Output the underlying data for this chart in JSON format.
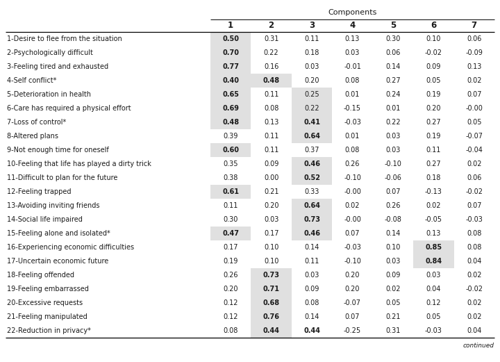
{
  "title": "Components",
  "col_headers": [
    "1",
    "2",
    "3",
    "4",
    "5",
    "6",
    "7"
  ],
  "rows": [
    {
      "label": "1-Desire to flee from the situation",
      "values": [
        "0.50",
        "0.31",
        "0.11",
        "0.13",
        "0.30",
        "0.10",
        "0.06"
      ],
      "bold": [
        true,
        false,
        false,
        false,
        false,
        false,
        false
      ]
    },
    {
      "label": "2-Psychologically difficult",
      "values": [
        "0.70",
        "0.22",
        "0.18",
        "0.03",
        "0.06",
        "-0.02",
        "-0.09"
      ],
      "bold": [
        true,
        false,
        false,
        false,
        false,
        false,
        false
      ]
    },
    {
      "label": "3-Feeling tired and exhausted",
      "values": [
        "0.77",
        "0.16",
        "0.03",
        "-0.01",
        "0.14",
        "0.09",
        "0.13"
      ],
      "bold": [
        true,
        false,
        false,
        false,
        false,
        false,
        false
      ]
    },
    {
      "label": "4-Self conflict*",
      "values": [
        "0.40",
        "0.48",
        "0.20",
        "0.08",
        "0.27",
        "0.05",
        "0.02"
      ],
      "bold": [
        true,
        true,
        false,
        false,
        false,
        false,
        false
      ]
    },
    {
      "label": "5-Deterioration in health",
      "values": [
        "0.65",
        "0.11",
        "0.25",
        "0.01",
        "0.24",
        "0.19",
        "0.07"
      ],
      "bold": [
        true,
        false,
        false,
        false,
        false,
        false,
        false
      ]
    },
    {
      "label": "6-Care has required a physical effort",
      "values": [
        "0.69",
        "0.08",
        "0.22",
        "-0.15",
        "0.01",
        "0.20",
        "-0.00"
      ],
      "bold": [
        true,
        false,
        false,
        false,
        false,
        false,
        false
      ]
    },
    {
      "label": "7-Loss of control*",
      "values": [
        "0.48",
        "0.13",
        "0.41",
        "-0.03",
        "0.22",
        "0.27",
        "0.05"
      ],
      "bold": [
        true,
        false,
        true,
        false,
        false,
        false,
        false
      ]
    },
    {
      "label": "8-Altered plans",
      "values": [
        "0.39",
        "0.11",
        "0.64",
        "0.01",
        "0.03",
        "0.19",
        "-0.07"
      ],
      "bold": [
        false,
        false,
        true,
        false,
        false,
        false,
        false
      ]
    },
    {
      "label": "9-Not enough time for oneself",
      "values": [
        "0.60",
        "0.11",
        "0.37",
        "0.08",
        "0.03",
        "0.11",
        "-0.04"
      ],
      "bold": [
        true,
        false,
        false,
        false,
        false,
        false,
        false
      ]
    },
    {
      "label": "10-Feeling that life has played a dirty trick",
      "values": [
        "0.35",
        "0.09",
        "0.46",
        "0.26",
        "-0.10",
        "0.27",
        "0.02"
      ],
      "bold": [
        false,
        false,
        true,
        false,
        false,
        false,
        false
      ]
    },
    {
      "label": "11-Difficult to plan for the future",
      "values": [
        "0.38",
        "0.00",
        "0.52",
        "-0.10",
        "-0.06",
        "0.18",
        "0.06"
      ],
      "bold": [
        false,
        false,
        true,
        false,
        false,
        false,
        false
      ]
    },
    {
      "label": "12-Feeling trapped",
      "values": [
        "0.61",
        "0.21",
        "0.33",
        "-0.00",
        "0.07",
        "-0.13",
        "-0.02"
      ],
      "bold": [
        true,
        false,
        false,
        false,
        false,
        false,
        false
      ]
    },
    {
      "label": "13-Avoiding inviting friends",
      "values": [
        "0.11",
        "0.20",
        "0.64",
        "0.02",
        "0.26",
        "0.02",
        "0.07"
      ],
      "bold": [
        false,
        false,
        true,
        false,
        false,
        false,
        false
      ]
    },
    {
      "label": "14-Social life impaired",
      "values": [
        "0.30",
        "0.03",
        "0.73",
        "-0.00",
        "-0.08",
        "-0.05",
        "-0.03"
      ],
      "bold": [
        false,
        false,
        true,
        false,
        false,
        false,
        false
      ]
    },
    {
      "label": "15-Feeling alone and isolated*",
      "values": [
        "0.47",
        "0.17",
        "0.46",
        "0.07",
        "0.14",
        "0.13",
        "0.08"
      ],
      "bold": [
        true,
        false,
        true,
        false,
        false,
        false,
        false
      ]
    },
    {
      "label": "16-Experiencing economic difficulties",
      "values": [
        "0.17",
        "0.10",
        "0.14",
        "-0.03",
        "0.10",
        "0.85",
        "0.08"
      ],
      "bold": [
        false,
        false,
        false,
        false,
        false,
        true,
        false
      ]
    },
    {
      "label": "17-Uncertain economic future",
      "values": [
        "0.19",
        "0.10",
        "0.11",
        "-0.10",
        "0.03",
        "0.84",
        "0.04"
      ],
      "bold": [
        false,
        false,
        false,
        false,
        false,
        true,
        false
      ]
    },
    {
      "label": "18-Feeling offended",
      "values": [
        "0.26",
        "0.73",
        "0.03",
        "0.20",
        "0.09",
        "0.03",
        "0.02"
      ],
      "bold": [
        false,
        true,
        false,
        false,
        false,
        false,
        false
      ]
    },
    {
      "label": "19-Feeling embarrassed",
      "values": [
        "0.20",
        "0.71",
        "0.09",
        "0.20",
        "0.02",
        "0.04",
        "-0.02"
      ],
      "bold": [
        false,
        true,
        false,
        false,
        false,
        false,
        false
      ]
    },
    {
      "label": "20-Excessive requests",
      "values": [
        "0.12",
        "0.68",
        "0.08",
        "-0.07",
        "0.05",
        "0.12",
        "0.02"
      ],
      "bold": [
        false,
        true,
        false,
        false,
        false,
        false,
        false
      ]
    },
    {
      "label": "21-Feeling manipulated",
      "values": [
        "0.12",
        "0.76",
        "0.14",
        "0.07",
        "0.21",
        "0.05",
        "0.02"
      ],
      "bold": [
        false,
        true,
        false,
        false,
        false,
        false,
        false
      ]
    },
    {
      "label": "22-Reduction in privacy*",
      "values": [
        "0.08",
        "0.44",
        "0.44",
        "-0.25",
        "0.31",
        "-0.03",
        "0.04"
      ],
      "bold": [
        false,
        true,
        true,
        false,
        false,
        false,
        false
      ]
    }
  ],
  "highlight_col": {
    "0": [
      0,
      1,
      2,
      3,
      4,
      5,
      6,
      8,
      11,
      14
    ],
    "1": [
      3,
      17,
      18,
      19,
      20,
      21
    ],
    "2": [
      4,
      5,
      6,
      7,
      9,
      10,
      12,
      13,
      14
    ],
    "5": [
      15,
      16
    ]
  },
  "highlight_color": "#e0e0e0",
  "bg_color": "#ffffff",
  "text_color": "#1a1a1a",
  "header_line_color": "#000000",
  "font_size": 7.0,
  "header_font_size": 8.0,
  "col_number_fontsize": 8.5
}
